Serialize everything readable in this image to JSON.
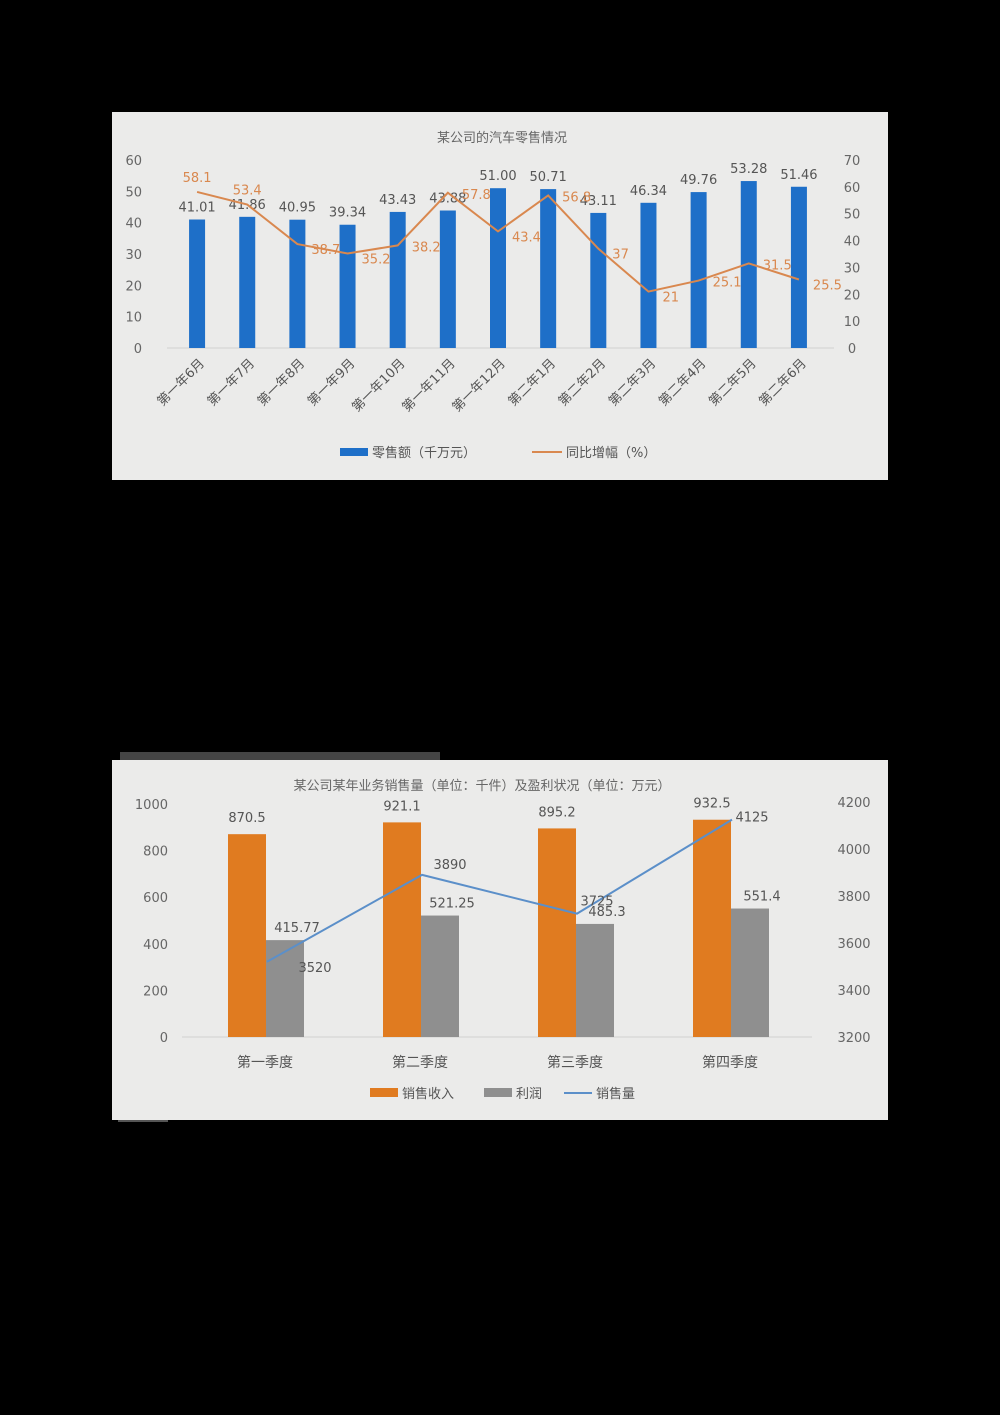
{
  "chart_data": [
    {
      "type": "bar+line",
      "title": "某公司的汽车零售情况",
      "categories": [
        "第一年6月",
        "第一年7月",
        "第一年8月",
        "第一年9月",
        "第一年10月",
        "第一年11月",
        "第一年12月",
        "第二年1月",
        "第二年2月",
        "第二年3月",
        "第二年4月",
        "第二年5月",
        "第二年6月"
      ],
      "series": [
        {
          "name": "零售额（千万元）",
          "type": "bar",
          "axis": "left",
          "color": "#1e6fc8",
          "values": [
            41.01,
            41.86,
            40.95,
            39.34,
            43.43,
            43.88,
            51.0,
            50.71,
            43.11,
            46.34,
            49.76,
            53.28,
            51.46
          ]
        },
        {
          "name": "同比增幅（%）",
          "type": "line",
          "axis": "right",
          "color": "#d9884f",
          "values": [
            58.1,
            53.4,
            38.7,
            35.2,
            38.2,
            57.8,
            43.4,
            56.8,
            37,
            21,
            25.1,
            31.5,
            25.5
          ]
        }
      ],
      "bar_labels": [
        "41.01",
        "41.86",
        "40.95",
        "39.34",
        "43.43",
        "43.88",
        "51.00",
        "50.71",
        "43.11",
        "46.34",
        "49.76",
        "53.28",
        "51.46"
      ],
      "line_labels": [
        "58.1",
        "53.4",
        "38.7",
        "35.2",
        "38.2",
        "57.8",
        "43.4",
        "56.8",
        "37",
        "21",
        "25.1",
        "31.5",
        "25.5"
      ],
      "y_left": {
        "ticks": [
          "0",
          "10",
          "20",
          "30",
          "40",
          "50",
          "60"
        ],
        "range": [
          0,
          60
        ]
      },
      "y_right": {
        "ticks": [
          "0",
          "10",
          "20",
          "30",
          "40",
          "50",
          "60",
          "70"
        ],
        "range": [
          0,
          70
        ]
      },
      "legend": [
        "零售额（千万元）",
        "同比增幅（%）"
      ],
      "legend_position": "bottom",
      "grid": false
    },
    {
      "type": "bar+line",
      "title": "某公司某年业务销售量（单位：千件）及盈利状况（单位：万元）",
      "categories": [
        "第一季度",
        "第二季度",
        "第三季度",
        "第四季度"
      ],
      "series": [
        {
          "name": "销售收入",
          "type": "bar",
          "axis": "left",
          "color": "#e07b20",
          "values": [
            870.5,
            921.1,
            895.2,
            932.5
          ]
        },
        {
          "name": "利润",
          "type": "bar",
          "axis": "left",
          "color": "#8f8f8f",
          "values": [
            415.77,
            521.25,
            485.3,
            551.4
          ]
        },
        {
          "name": "销售量",
          "type": "line",
          "axis": "right",
          "color": "#5b8fc9",
          "values": [
            3520,
            3890,
            3725,
            4125
          ]
        }
      ],
      "income_labels": [
        "870.5",
        "921.1",
        "895.2",
        "932.5"
      ],
      "profit_labels": [
        "415.77",
        "521.25",
        "485.3",
        "551.4"
      ],
      "volume_labels": [
        "3520",
        "3890",
        "3725",
        "4125"
      ],
      "y_left": {
        "ticks": [
          "0",
          "200",
          "400",
          "600",
          "800",
          "1000"
        ],
        "range": [
          0,
          1000
        ]
      },
      "y_right": {
        "ticks": [
          "3200",
          "3400",
          "3600",
          "3800",
          "4000",
          "4200"
        ],
        "range": [
          3200,
          4200
        ]
      },
      "legend": [
        "销售收入",
        "利润",
        "销售量"
      ],
      "legend_position": "bottom",
      "grid": false
    }
  ]
}
